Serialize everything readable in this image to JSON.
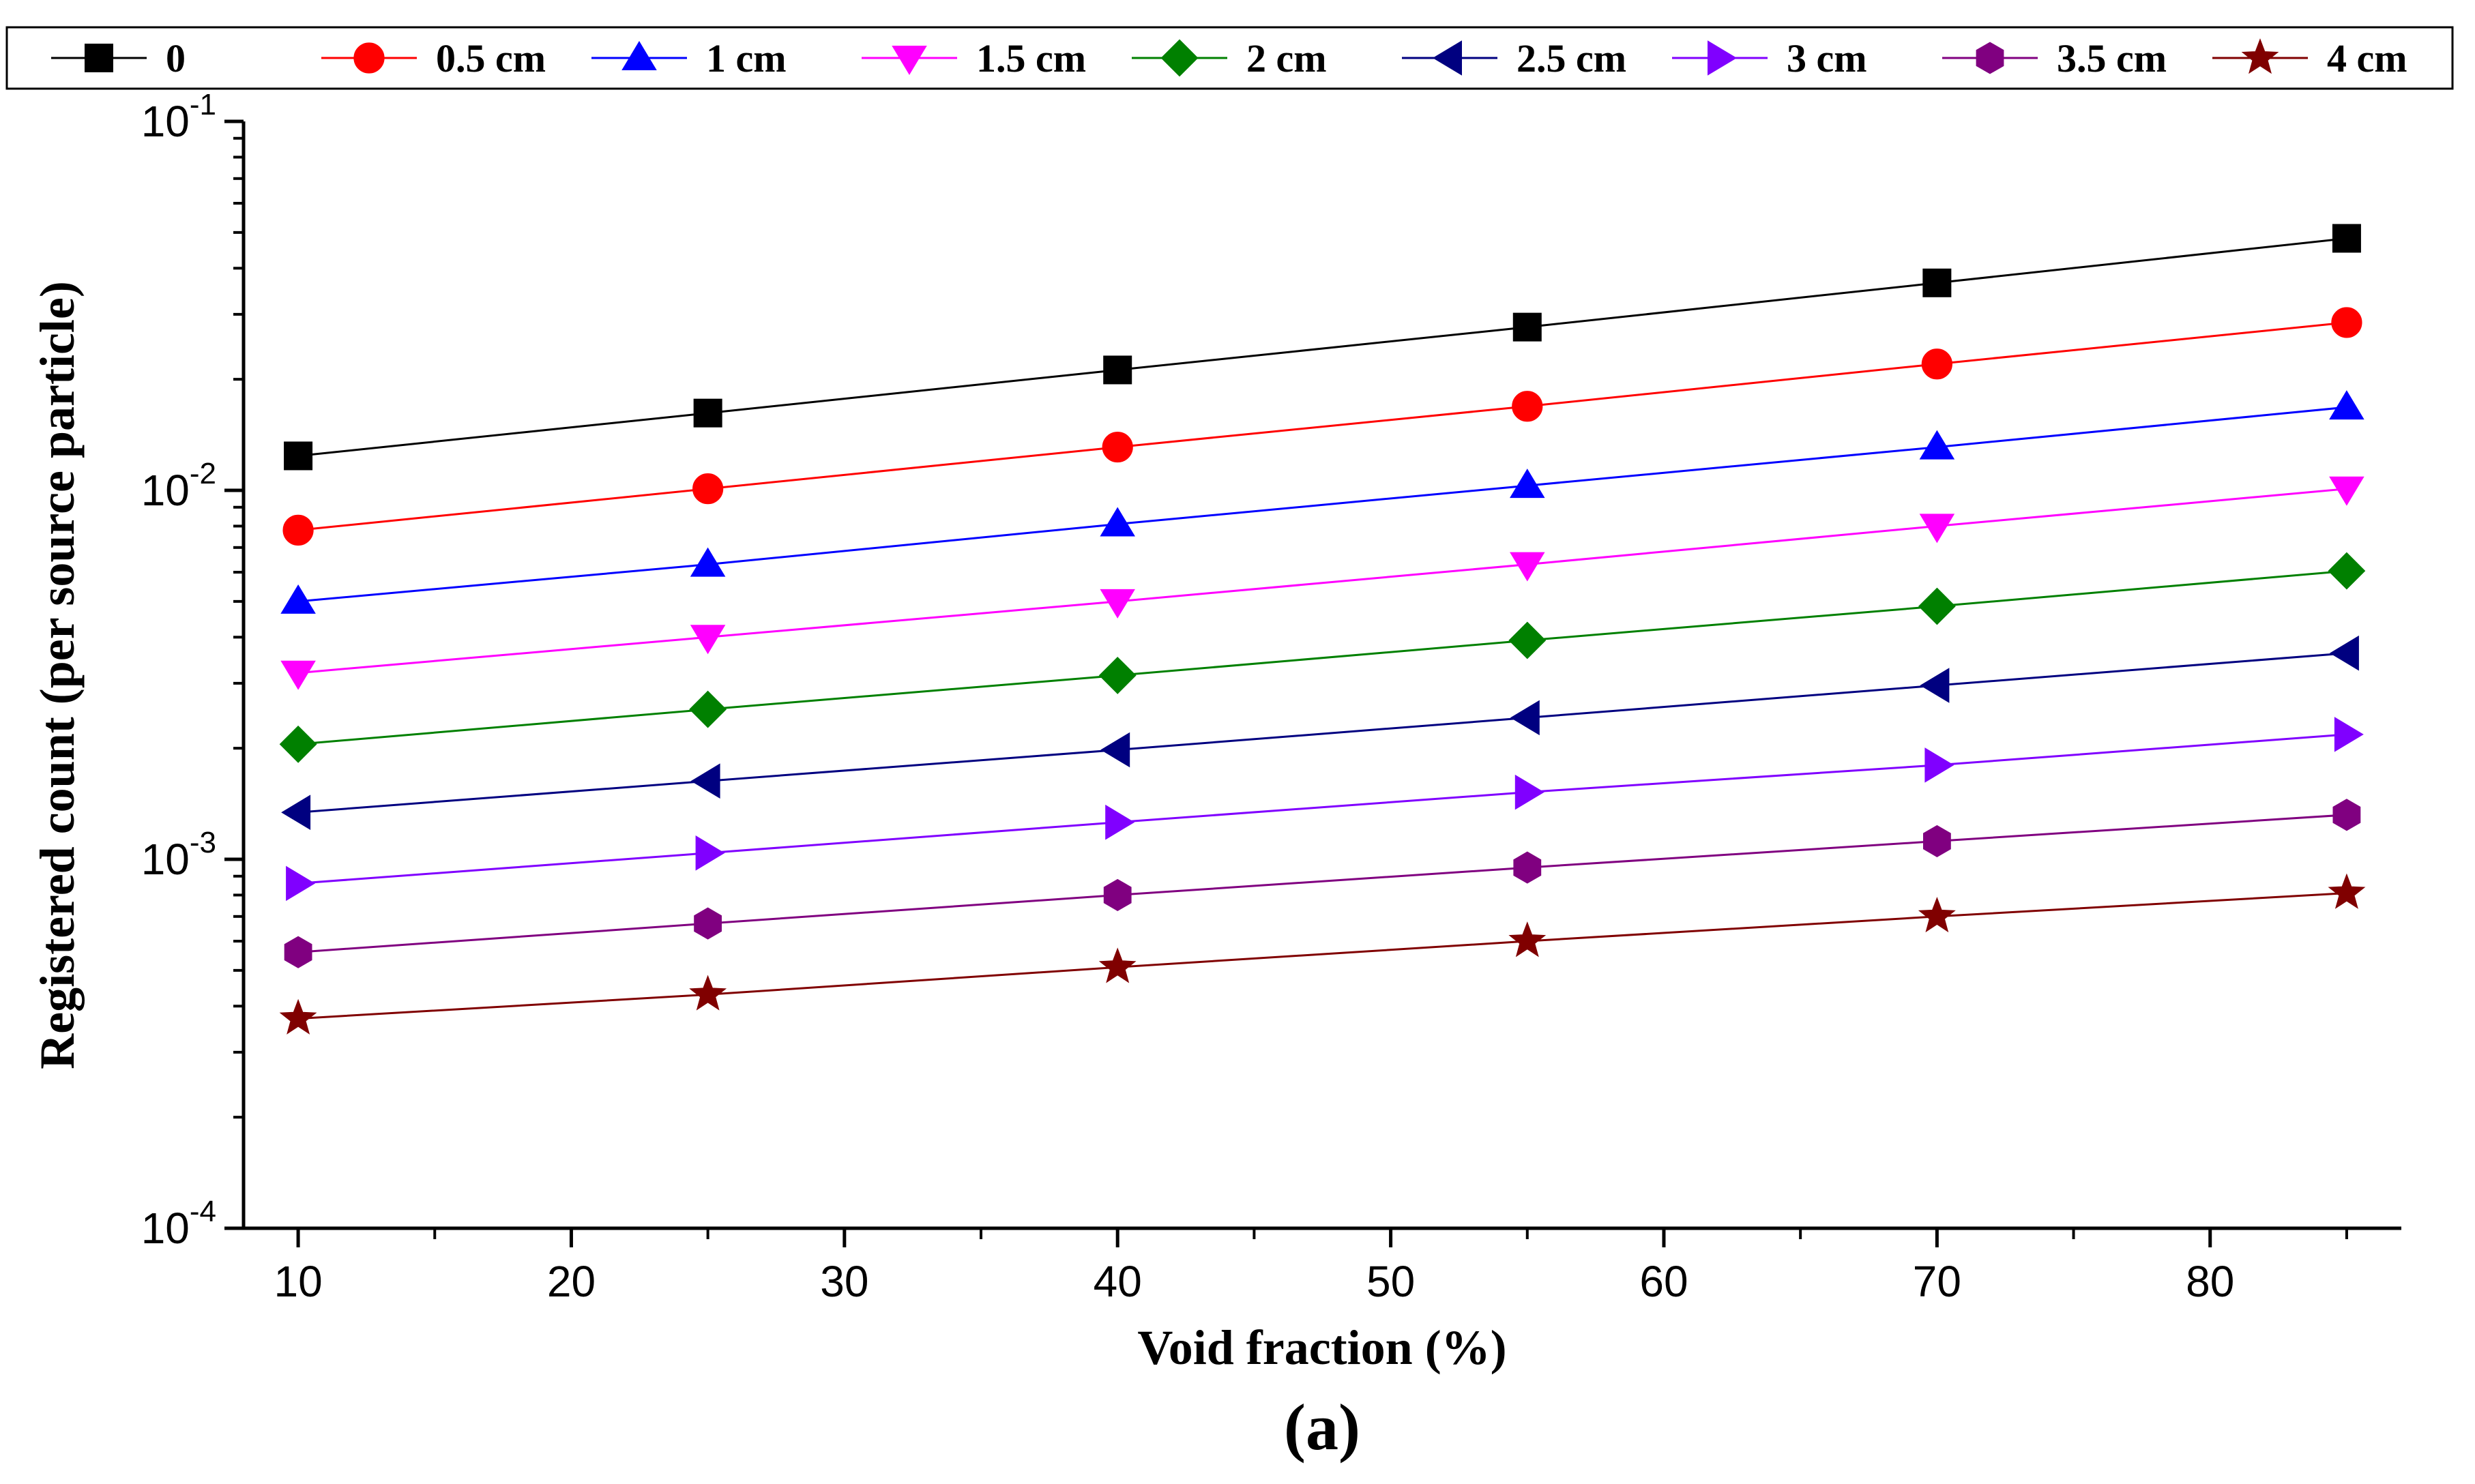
{
  "chart_data": {
    "type": "line",
    "title": "",
    "panel_label": "(a)",
    "xlabel": "Void fraction (%)",
    "ylabel": "Registered count (per source particle)",
    "yscale": "log",
    "xlim": [
      8,
      87
    ],
    "ylim": [
      0.0001,
      0.1
    ],
    "x_ticks": [
      10,
      20,
      30,
      40,
      50,
      60,
      70,
      80
    ],
    "x_tick_labels": [
      "10",
      "20",
      "30",
      "40",
      "50",
      "60",
      "70",
      "80"
    ],
    "y_ticks": [
      {
        "value": 0.1,
        "base": "10",
        "exp": "-1"
      },
      {
        "value": 0.01,
        "base": "10",
        "exp": "-2"
      },
      {
        "value": 0.001,
        "base": "10",
        "exp": "-3"
      },
      {
        "value": 0.0001,
        "base": "10",
        "exp": "-4"
      }
    ],
    "legend_position": "top",
    "grid": false,
    "x": [
      10,
      25,
      40,
      55,
      70,
      85
    ],
    "series": [
      {
        "name": "0",
        "color": "#000000",
        "marker": "square",
        "values": [
          0.0124,
          0.0162,
          0.0212,
          0.0277,
          0.0365,
          0.0482
        ]
      },
      {
        "name": "0.5 cm",
        "color": "#ff0000",
        "marker": "circle",
        "values": [
          0.0078,
          0.0101,
          0.0131,
          0.0169,
          0.022,
          0.0285
        ]
      },
      {
        "name": "1 cm",
        "color": "#0000ff",
        "marker": "triangle-up",
        "values": [
          0.005,
          0.0063,
          0.0081,
          0.0103,
          0.0131,
          0.0168
        ]
      },
      {
        "name": "1.5 cm",
        "color": "#ff00ff",
        "marker": "triangle-down",
        "values": [
          0.0032,
          0.004,
          0.005,
          0.0063,
          0.008,
          0.0101
        ]
      },
      {
        "name": "2 cm",
        "color": "#008000",
        "marker": "diamond",
        "values": [
          0.00205,
          0.00255,
          0.00315,
          0.00392,
          0.00485,
          0.00605
        ]
      },
      {
        "name": "2.5 cm",
        "color": "#000080",
        "marker": "triangle-left",
        "values": [
          0.00134,
          0.00163,
          0.00198,
          0.00242,
          0.00296,
          0.00362
        ]
      },
      {
        "name": "3 cm",
        "color": "#8000ff",
        "marker": "triangle-right",
        "values": [
          0.00086,
          0.00104,
          0.00126,
          0.00152,
          0.0018,
          0.00218
        ]
      },
      {
        "name": "3.5 cm",
        "color": "#800080",
        "marker": "hexagon",
        "values": [
          0.00056,
          0.00067,
          0.0008,
          0.00095,
          0.00112,
          0.00132
        ]
      },
      {
        "name": "4 cm",
        "color": "#800000",
        "marker": "star",
        "values": [
          0.00037,
          0.00043,
          0.00051,
          0.0006,
          0.0007,
          0.00081
        ]
      }
    ]
  }
}
